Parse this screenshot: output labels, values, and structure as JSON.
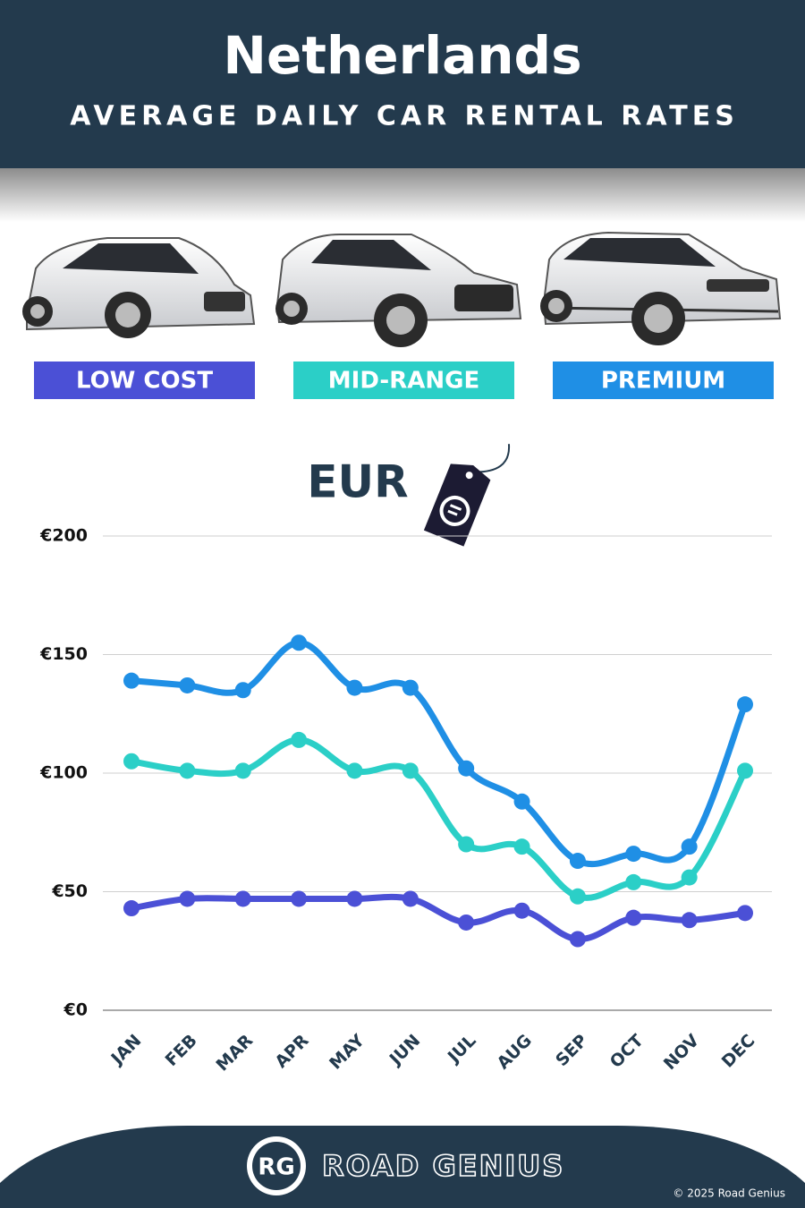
{
  "chart_data": {
    "type": "line",
    "title": "Netherlands",
    "subtitle": "AVERAGE DAILY CAR RENTAL RATES",
    "currency": "EUR",
    "categories": [
      "JAN",
      "FEB",
      "MAR",
      "APR",
      "MAY",
      "JUN",
      "JUL",
      "AUG",
      "SEP",
      "OCT",
      "NOV",
      "DEC"
    ],
    "series": [
      {
        "name": "LOW COST",
        "color": "#4b50d6",
        "values": [
          43,
          47,
          47,
          47,
          47,
          47,
          37,
          42,
          30,
          39,
          38,
          41
        ]
      },
      {
        "name": "MID-RANGE",
        "color": "#2bcfc7",
        "values": [
          105,
          101,
          101,
          114,
          101,
          101,
          70,
          69,
          48,
          54,
          56,
          101
        ]
      },
      {
        "name": "PREMIUM",
        "color": "#1f8fe5",
        "values": [
          139,
          137,
          135,
          155,
          136,
          136,
          102,
          88,
          63,
          66,
          69,
          129
        ]
      }
    ],
    "ylim": [
      0,
      200
    ],
    "yticks": [
      {
        "value": 0,
        "label": "€0"
      },
      {
        "value": 50,
        "label": "€50"
      },
      {
        "value": 100,
        "label": "€100"
      },
      {
        "value": 150,
        "label": "€150"
      },
      {
        "value": 200,
        "label": "€200"
      }
    ],
    "grid": true
  },
  "footer": {
    "logo": "RG",
    "brand": "ROAD GENIUS",
    "copyright": "© 2025 Road Genius"
  }
}
